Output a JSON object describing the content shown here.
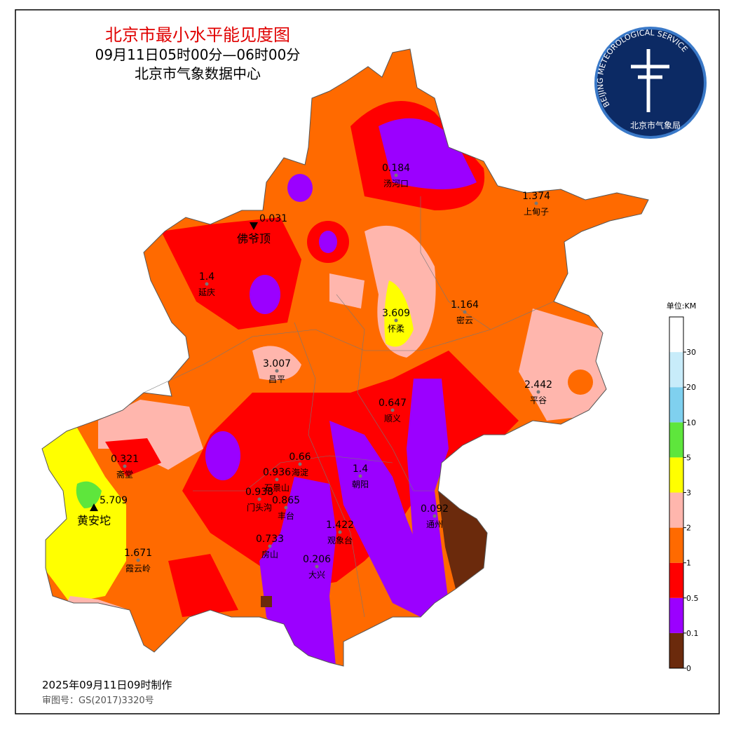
{
  "header": {
    "title": "北京市最小水平能见度图",
    "time_range": "09月11日05时00分—06时00分",
    "source": "北京市气象数据中心"
  },
  "logo": {
    "ring_text": "BEIJING METEOROLOGICAL SERVICE",
    "name": "北京市气象局"
  },
  "stations": [
    {
      "value": "0.184",
      "name": "汤河口"
    },
    {
      "value": "1.374",
      "name": "上甸子"
    },
    {
      "value": "0.031",
      "name": "佛爷顶"
    },
    {
      "value": "1.4",
      "name": "延庆"
    },
    {
      "value": "3.609",
      "name": "怀柔"
    },
    {
      "value": "1.164",
      "name": "密云"
    },
    {
      "value": "3.007",
      "name": "昌平"
    },
    {
      "value": "2.442",
      "name": "平谷"
    },
    {
      "value": "0.647",
      "name": "顺义"
    },
    {
      "value": "0.66",
      "name": "海淀"
    },
    {
      "value": "0.321",
      "name": "斋堂"
    },
    {
      "value": "0.936",
      "name": "石景山"
    },
    {
      "value": "1.4",
      "name": "朝阳"
    },
    {
      "value": "5.709",
      "name": "黄安坨"
    },
    {
      "value": "0.938",
      "name": "门头沟"
    },
    {
      "value": "0.865",
      "name": "丰台"
    },
    {
      "value": "1.422",
      "name": "观象台"
    },
    {
      "value": "0.092",
      "name": "通州"
    },
    {
      "value": "0.733",
      "name": "房山"
    },
    {
      "value": "0.206",
      "name": "大兴"
    },
    {
      "value": "1.671",
      "name": "霞云岭"
    }
  ],
  "legend": {
    "unit": "单位:KM",
    "ticks": [
      "0",
      "0.1",
      "0.5",
      "1",
      "2",
      "3",
      "5",
      "10",
      "20",
      "30"
    ],
    "colors": [
      "#6b2a0c",
      "#9b00ff",
      "#ff0000",
      "#ff6a00",
      "#ffb6ad",
      "#ffff00",
      "#5ee63c",
      "#7fd0ef",
      "#c8ecfa",
      "#ffffff"
    ]
  },
  "footer": {
    "made": "2025年09月11日09时制作",
    "approval": "审图号：GS(2017)3320号"
  }
}
